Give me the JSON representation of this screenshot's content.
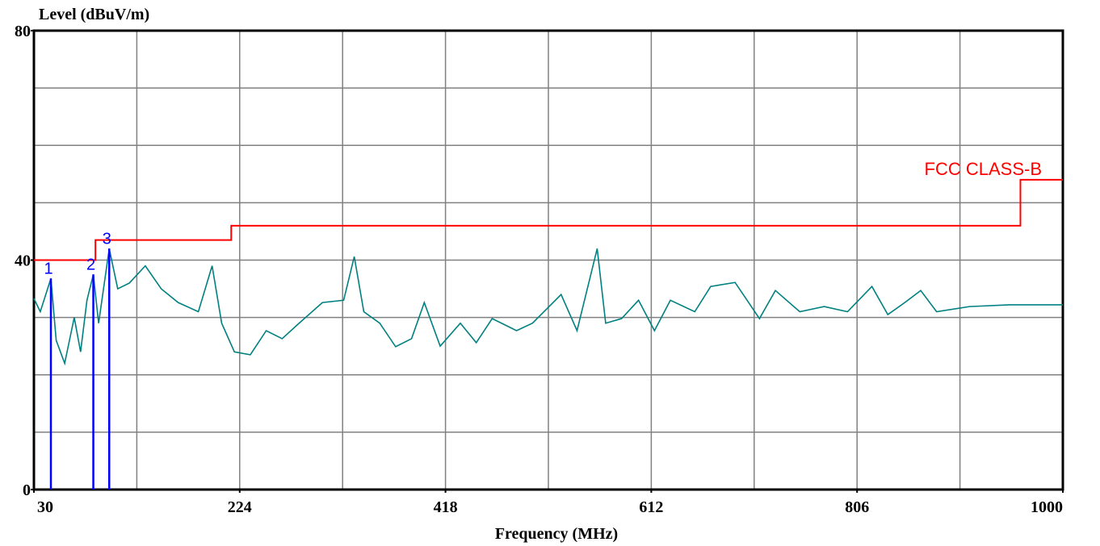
{
  "chart_data": {
    "type": "line",
    "y_label": "Level (dBuV/m)",
    "x_label": "Frequency (MHz)",
    "xlim": [
      30,
      1000
    ],
    "ylim": [
      0,
      80
    ],
    "xticks": [
      30,
      224,
      418,
      612,
      806,
      1000
    ],
    "yticks": [
      0,
      40,
      80
    ],
    "xgrid": [
      127,
      224,
      321,
      418,
      515,
      612,
      709,
      806,
      903
    ],
    "ygrid": [
      10,
      20,
      30,
      40,
      50,
      60,
      70
    ],
    "grid_color": "#808080",
    "series": [
      {
        "name": "FCC CLASS-B",
        "color": "#ff0000",
        "x": [
          30,
          88,
          88,
          216,
          216,
          960,
          960,
          1000
        ],
        "values": [
          40,
          40,
          43.5,
          43.5,
          46,
          46,
          54,
          54
        ]
      },
      {
        "color": "#008080",
        "x": [
          30,
          36,
          46,
          51,
          59,
          68,
          74,
          80,
          86,
          91,
          101,
          109,
          120,
          135,
          150,
          166,
          185,
          198,
          207,
          219,
          234,
          249,
          264,
          280,
          302,
          322,
          332,
          341,
          356,
          371,
          386,
          398,
          413,
          432,
          447,
          462,
          485,
          500,
          527,
          542,
          561,
          569,
          584,
          600,
          615,
          630,
          653,
          668,
          691,
          714,
          729,
          752,
          775,
          797,
          820,
          835,
          851,
          866,
          881,
          912,
          950,
          1000
        ],
        "values": [
          33.3,
          31,
          36.8,
          26,
          22,
          30,
          24,
          33,
          37.5,
          29,
          42,
          35,
          36,
          39,
          35,
          32.6,
          31,
          39,
          29,
          24,
          23.5,
          27.7,
          26.3,
          29,
          32.6,
          33,
          40.6,
          31,
          29,
          24.9,
          26.3,
          32.6,
          25,
          29,
          25.6,
          29.8,
          27.7,
          29,
          34,
          27.7,
          42,
          29,
          29.8,
          33,
          27.7,
          33,
          31,
          35.4,
          36.1,
          29.8,
          34.7,
          31,
          31.9,
          31,
          35.4,
          30.5,
          32.6,
          34.7,
          31,
          31.9,
          32.2,
          32.2
        ]
      }
    ],
    "markers": {
      "color": "#0000ff",
      "points": [
        {
          "label": "1",
          "x": 46,
          "value": 36.8
        },
        {
          "label": "2",
          "x": 86,
          "value": 37.5
        },
        {
          "label": "3",
          "x": 101,
          "value": 42
        }
      ]
    }
  }
}
